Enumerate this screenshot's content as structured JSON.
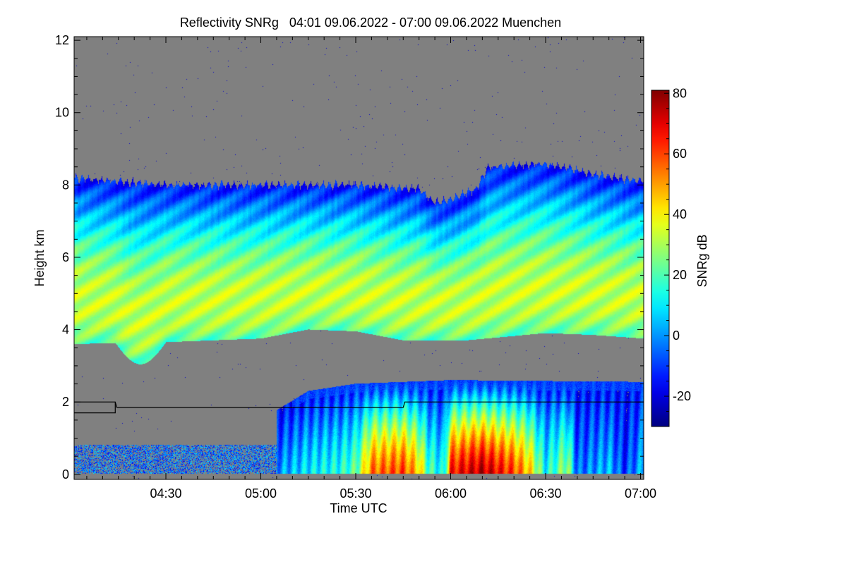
{
  "chart_data": {
    "type": "heatmap",
    "title": "Reflectivity SNRg   04:01 09.06.2022 - 07:00 09.06.2022 Muenchen",
    "xlabel": "Time UTC",
    "ylabel": "Height km",
    "colorbar_label": "SNRg dB",
    "xlim_minutes_after_0400": [
      1,
      181
    ],
    "ylim_km": [
      -0.14,
      12.1
    ],
    "x_ticks": [
      {
        "label": "04:30",
        "min": 30
      },
      {
        "label": "05:00",
        "min": 60
      },
      {
        "label": "05:30",
        "min": 90
      },
      {
        "label": "06:00",
        "min": 120
      },
      {
        "label": "06:30",
        "min": 150
      },
      {
        "label": "07:00",
        "min": 180
      }
    ],
    "y_ticks": [
      "0",
      "2",
      "4",
      "6",
      "8",
      "10",
      "12"
    ],
    "colorbar_range_db": [
      -30,
      81
    ],
    "colorbar_ticks": [
      "-20",
      "0",
      "20",
      "40",
      "60",
      "80"
    ],
    "colormap": "jet",
    "no_signal_color": "#808080",
    "upper_cloud": {
      "top_km": [
        [
          1,
          8.2
        ],
        [
          30,
          8.0
        ],
        [
          60,
          8.0
        ],
        [
          90,
          8.0
        ],
        [
          110,
          7.9
        ],
        [
          115,
          7.5
        ],
        [
          120,
          7.6
        ],
        [
          128,
          7.9
        ],
        [
          132,
          8.5
        ],
        [
          150,
          8.6
        ],
        [
          165,
          8.3
        ],
        [
          181,
          8.1
        ]
      ],
      "base_km": [
        [
          1,
          3.6
        ],
        [
          30,
          3.65
        ],
        [
          60,
          3.75
        ],
        [
          75,
          4.0
        ],
        [
          90,
          3.95
        ],
        [
          105,
          3.7
        ],
        [
          125,
          3.7
        ],
        [
          150,
          3.9
        ],
        [
          165,
          3.85
        ],
        [
          181,
          3.75
        ]
      ],
      "peak_snr_db": 23,
      "top_snr_db": -15
    },
    "precipitation": {
      "max_snr_db_near_ground": [
        [
          60,
          -40
        ],
        [
          65,
          0
        ],
        [
          75,
          10
        ],
        [
          85,
          15
        ],
        [
          90,
          22
        ],
        [
          95,
          55
        ],
        [
          105,
          60
        ],
        [
          110,
          45
        ],
        [
          113,
          20
        ],
        [
          118,
          10
        ],
        [
          120,
          65
        ],
        [
          130,
          75
        ],
        [
          140,
          60
        ],
        [
          145,
          45
        ],
        [
          150,
          12
        ],
        [
          157,
          30
        ],
        [
          160,
          -5
        ],
        [
          170,
          5
        ],
        [
          175,
          -10
        ],
        [
          181,
          5
        ]
      ],
      "top_km": [
        [
          1,
          1.0
        ],
        [
          60,
          1.5
        ],
        [
          75,
          2.3
        ],
        [
          90,
          2.5
        ],
        [
          120,
          2.6
        ],
        [
          181,
          2.55
        ]
      ]
    },
    "boundary_line_km": [
      [
        1,
        2.0
      ],
      [
        14,
        2.0
      ],
      [
        14.5,
        1.85
      ],
      [
        105,
        1.85
      ],
      [
        105.5,
        2.0
      ],
      [
        181,
        2.0
      ]
    ],
    "boundary_line_lower_km": [
      [
        1,
        1.7
      ],
      [
        14,
        1.7
      ],
      [
        14,
        2.0
      ]
    ]
  }
}
